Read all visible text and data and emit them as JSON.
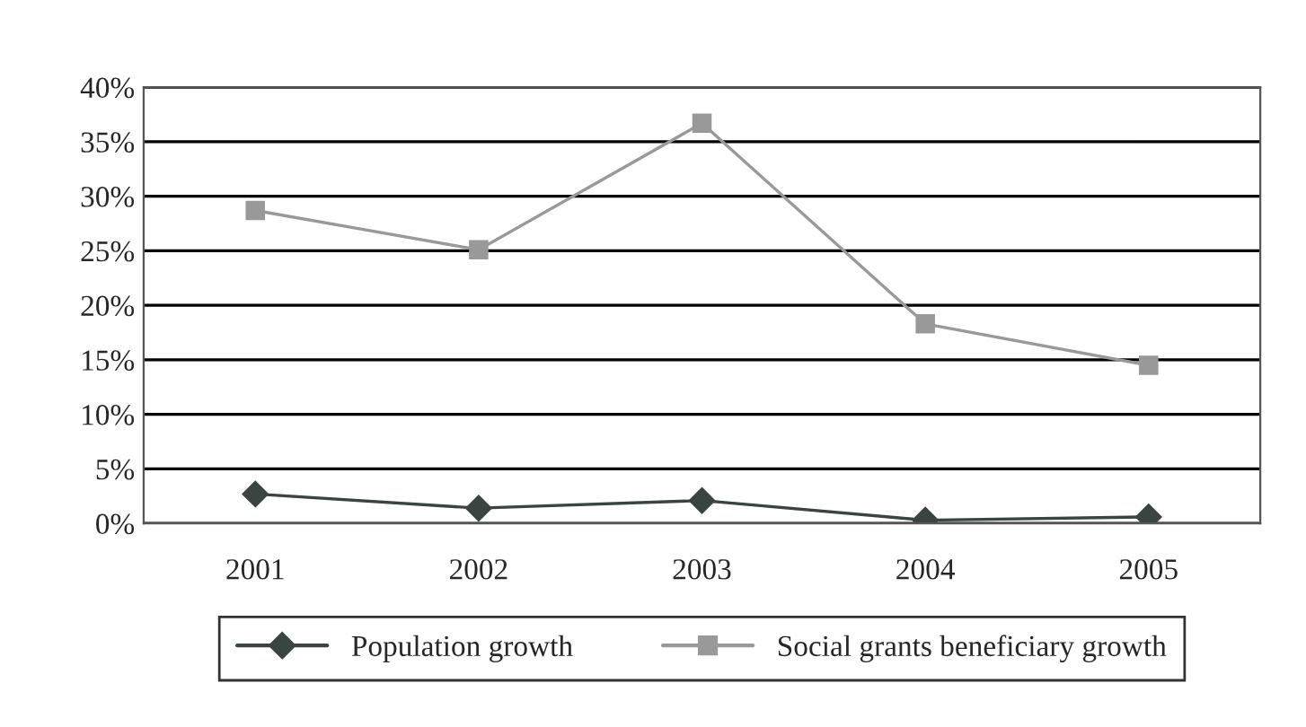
{
  "chart_data": {
    "type": "line",
    "categories": [
      "2001",
      "2002",
      "2003",
      "2004",
      "2005"
    ],
    "series": [
      {
        "name": "Population growth",
        "color": "#3a4440",
        "marker": "diamond",
        "values": [
          2.7,
          1.4,
          2.1,
          0.3,
          0.6
        ]
      },
      {
        "name": "Social grants beneficiary growth",
        "color": "#999999",
        "marker": "square",
        "values": [
          28.7,
          25.1,
          36.7,
          18.3,
          14.5
        ]
      }
    ],
    "ylim": [
      0,
      40
    ],
    "yticks": [
      {
        "value": 0,
        "label": "0%"
      },
      {
        "value": 5,
        "label": "5%"
      },
      {
        "value": 10,
        "label": "10%"
      },
      {
        "value": 15,
        "label": "15%"
      },
      {
        "value": 20,
        "label": "20%"
      },
      {
        "value": 25,
        "label": "25%"
      },
      {
        "value": 30,
        "label": "30%"
      },
      {
        "value": 35,
        "label": "35%"
      },
      {
        "value": 40,
        "label": "40%"
      }
    ],
    "grid": "y",
    "legend": "bottom",
    "line_style": "solid"
  }
}
